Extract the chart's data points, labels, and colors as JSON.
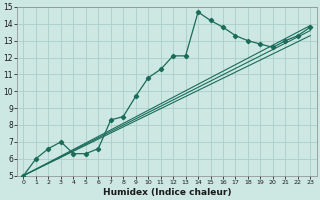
{
  "xlabel": "Humidex (Indice chaleur)",
  "ylabel": "",
  "background_color": "#cde8e2",
  "grid_color": "#aad0c8",
  "line_color": "#1a6b5a",
  "xlim": [
    -0.5,
    23.5
  ],
  "ylim": [
    5,
    15
  ],
  "xticks": [
    0,
    1,
    2,
    3,
    4,
    5,
    6,
    7,
    8,
    9,
    10,
    11,
    12,
    13,
    14,
    15,
    16,
    17,
    18,
    19,
    20,
    21,
    22,
    23
  ],
  "yticks": [
    5,
    6,
    7,
    8,
    9,
    10,
    11,
    12,
    13,
    14,
    15
  ],
  "series_main": {
    "x": [
      0,
      1,
      2,
      3,
      4,
      5,
      6,
      7,
      8,
      9,
      10,
      11,
      12,
      13,
      14,
      15,
      16,
      17,
      18,
      19,
      20,
      21,
      22,
      23
    ],
    "y": [
      5.0,
      6.0,
      6.6,
      7.0,
      6.3,
      6.3,
      6.6,
      8.3,
      8.5,
      9.7,
      10.8,
      11.3,
      12.1,
      12.1,
      14.7,
      14.2,
      13.8,
      13.3,
      13.0,
      12.8,
      12.6,
      13.0,
      13.3,
      13.8
    ]
  },
  "series_linear": [
    {
      "x": [
        0,
        23
      ],
      "y": [
        5.0,
        13.3
      ]
    },
    {
      "x": [
        0,
        23
      ],
      "y": [
        5.0,
        13.6
      ]
    },
    {
      "x": [
        0,
        23
      ],
      "y": [
        5.0,
        13.9
      ]
    }
  ]
}
